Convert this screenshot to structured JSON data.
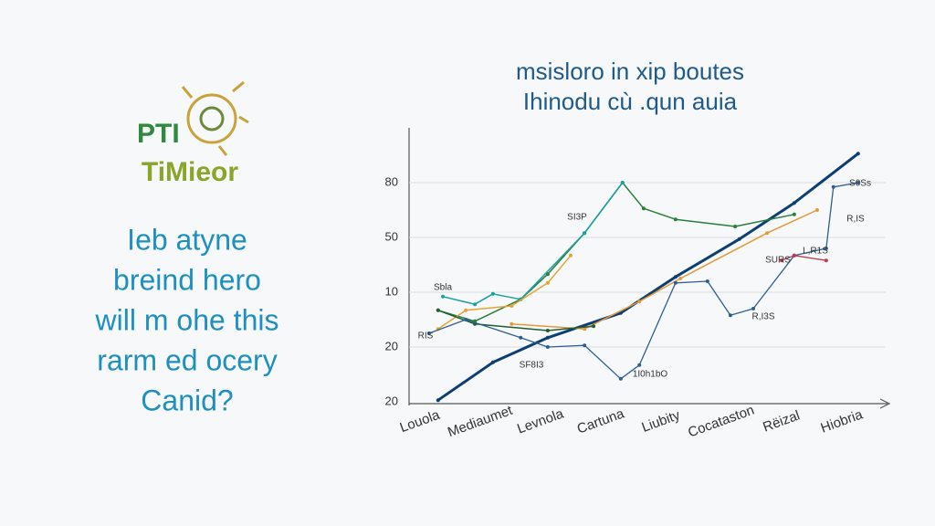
{
  "logo": {
    "top": "PTI",
    "bottom": "TiMieor"
  },
  "body_lines": [
    "Ieb atyne",
    "breind hero",
    "will m ohe this",
    "rarm ed ocery",
    "Canid?"
  ],
  "chart_data": {
    "type": "line",
    "title": [
      "msisloro in xip boutes",
      "Ihinodu cù .qun auia"
    ],
    "categories": [
      "Louola",
      "Mediaumet",
      "Levnola",
      "Cartuna",
      "Liubity",
      "Cocataston",
      "Rëizal",
      "Hiobria"
    ],
    "yticks": [
      {
        "value": 0,
        "label": "20"
      },
      {
        "value": 1,
        "label": "20"
      },
      {
        "value": 2,
        "label": "10"
      },
      {
        "value": 3,
        "label": "50"
      },
      {
        "value": 4,
        "label": "80"
      }
    ],
    "ylim": [
      0,
      4.7
    ],
    "xlim": [
      0,
      7.4
    ],
    "grid": true,
    "series": [
      {
        "color": "#0d3f73",
        "width": 3,
        "x": [
          0.3,
          1.21,
          2.12,
          3.33,
          4.24,
          5.3,
          6.21,
          7.27
        ],
        "values": [
          0.03,
          0.72,
          1.17,
          1.62,
          2.28,
          2.97,
          3.63,
          4.53
        ]
      },
      {
        "color": "#2a7d3a",
        "width": 1.5,
        "x": [
          0.3,
          0.91,
          1.67,
          2.12,
          2.73,
          3.36,
          3.71,
          4.24,
          5.23,
          6.21
        ],
        "values": [
          1.67,
          1.47,
          1.87,
          2.33,
          3.08,
          4,
          3.53,
          3.33,
          3.2,
          3.42
        ]
      },
      {
        "color": "#1aa0a0",
        "width": 1.5,
        "x": [
          0.38,
          0.91,
          1.21,
          1.67,
          2.73,
          3.36
        ],
        "values": [
          1.92,
          1.78,
          1.97,
          1.87,
          3.08,
          4
        ]
      },
      {
        "color": "#e3a437",
        "width": 1.5,
        "x": [
          0.3,
          0.76,
          1.52,
          2.12,
          2.5
        ],
        "values": [
          1.33,
          1.67,
          1.75,
          2.17,
          2.67
        ]
      },
      {
        "color": "#e39a3a",
        "width": 1.5,
        "x": [
          1.52,
          2.73,
          3.64,
          4.32,
          5.76,
          6.59
        ],
        "values": [
          1.42,
          1.33,
          1.83,
          2.25,
          3.08,
          3.5
        ]
      },
      {
        "color": "#245c35",
        "width": 1.5,
        "x": [
          0.3,
          0.91,
          2.12,
          2.88
        ],
        "values": [
          1.67,
          1.42,
          1.3,
          1.38
        ]
      },
      {
        "color": "#2f5f8f",
        "width": 1.3,
        "x": [
          0.15,
          0.76,
          1.67,
          2.12,
          2.73,
          3.33,
          3.64,
          4.24,
          4.77,
          5.15,
          5.53,
          6.21,
          6.74,
          6.86,
          7.27
        ],
        "values": [
          1.25,
          1.5,
          1.17,
          1,
          1.03,
          0.42,
          0.67,
          2.17,
          2.2,
          1.58,
          1.7,
          2.67,
          2.8,
          3.92,
          4
        ]
      },
      {
        "color": "#c0394f",
        "width": 1.3,
        "x": [
          6.0,
          6.21,
          6.74
        ],
        "values": [
          2.58,
          2.67,
          2.58
        ]
      }
    ],
    "annotations": [
      "SI3P",
      "Sbla",
      "RIS",
      "SF8I3",
      "1I0h1bO",
      "R,I3S",
      "SURS",
      "L,R1S",
      "R,IS",
      "S0Ss"
    ]
  }
}
